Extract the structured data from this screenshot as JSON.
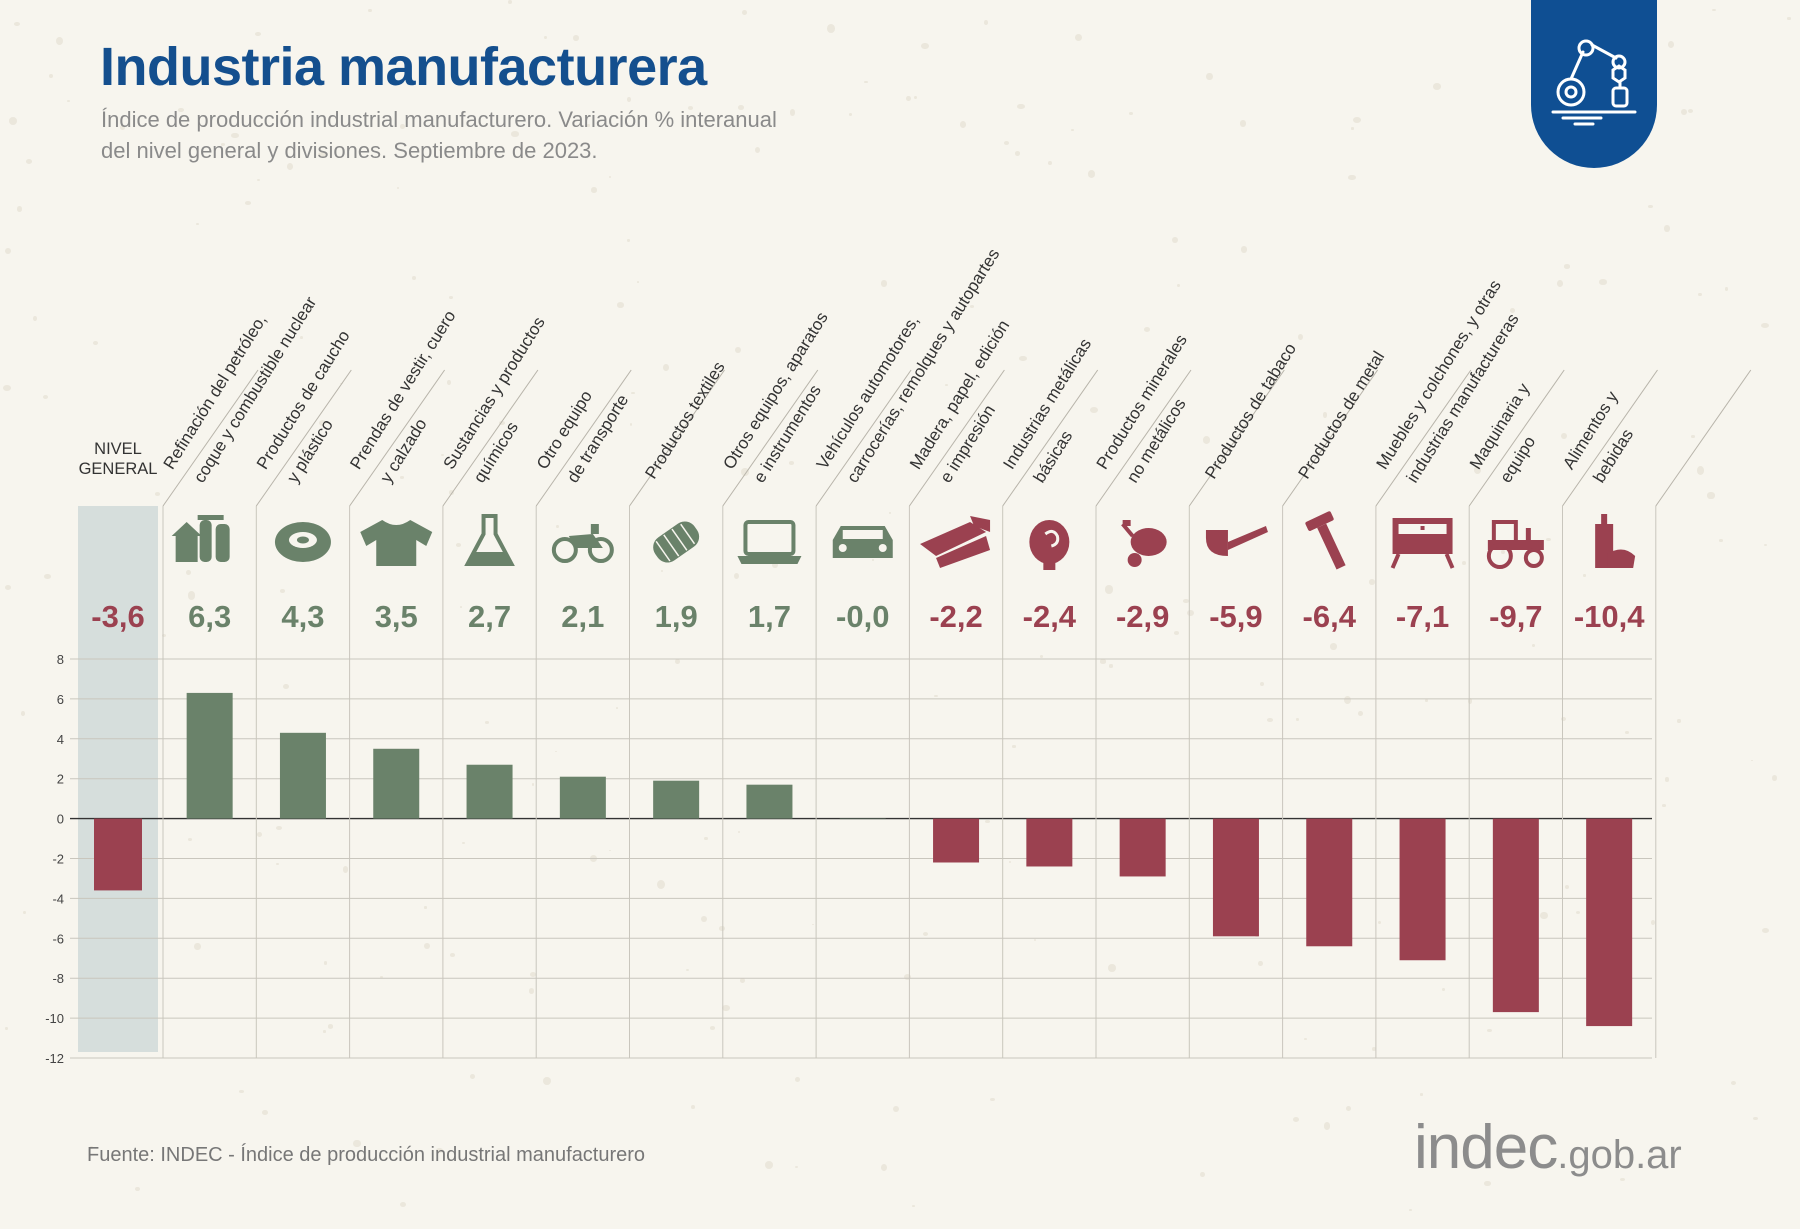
{
  "header": {
    "title": "Industria manufacturera",
    "subtitle_line1": "Índice de producción industrial manufacturero. Variación % interanual",
    "subtitle_line2": "del nivel general y divisiones. Septiembre de 2023."
  },
  "badge": {
    "icon": "robot-arm-icon"
  },
  "footer": {
    "source": "Fuente: INDEC - Índice de producción industrial manufacturero",
    "brand_main": "indec",
    "brand_suffix": ".gob.ar"
  },
  "colors": {
    "positive": "#6a826a",
    "negative": "#9b4150",
    "title": "#144f8e",
    "highlight": "#d6dedc"
  },
  "chart_data": {
    "type": "bar",
    "ylim": [
      -12,
      8
    ],
    "yticks": [
      8,
      6,
      4,
      2,
      0,
      -2,
      -4,
      -6,
      -8,
      -10,
      -12
    ],
    "grid": true,
    "highlight": {
      "label": [
        "NIVEL",
        "GENERAL"
      ],
      "value": -3.6,
      "value_label": "-3,6",
      "icon": ""
    },
    "categories": [
      {
        "label": [
          "Refinación del petróleo,",
          "coque y combustible nuclear"
        ],
        "value": 6.3,
        "value_label": "6,3",
        "icon": "refinery-icon"
      },
      {
        "label": [
          "Productos de caucho",
          "y plástico"
        ],
        "value": 4.3,
        "value_label": "4,3",
        "icon": "tire-icon"
      },
      {
        "label": [
          "Prendas de vestir, cuero",
          "y calzado"
        ],
        "value": 3.5,
        "value_label": "3,5",
        "icon": "sweater-icon"
      },
      {
        "label": [
          "Sustancias y productos",
          "químicos"
        ],
        "value": 2.7,
        "value_label": "2,7",
        "icon": "flask-icon"
      },
      {
        "label": [
          "Otro equipo",
          "de transporte"
        ],
        "value": 2.1,
        "value_label": "2,1",
        "icon": "motorcycle-icon"
      },
      {
        "label": [
          "Productos textiles"
        ],
        "value": 1.9,
        "value_label": "1,9",
        "icon": "thread-spool-icon"
      },
      {
        "label": [
          "Otros equipos, aparatos",
          "e instrumentos"
        ],
        "value": 1.7,
        "value_label": "1,7",
        "icon": "laptop-icon"
      },
      {
        "label": [
          "Vehículos automotores,",
          "carrocerías, remolques y autopartes"
        ],
        "value": -0.0,
        "value_label": "-0,0",
        "icon": "car-icon"
      },
      {
        "label": [
          "Madera, papel, edición",
          "e impresión"
        ],
        "value": -2.2,
        "value_label": "-2,2",
        "icon": "wood-plank-icon"
      },
      {
        "label": [
          "Industrias metálicas",
          "básicas"
        ],
        "value": -2.4,
        "value_label": "-2,4",
        "icon": "metal-coil-icon"
      },
      {
        "label": [
          "Productos minerales",
          "no metálicos"
        ],
        "value": -2.9,
        "value_label": "-2,9",
        "icon": "cement-mixer-icon"
      },
      {
        "label": [
          "Productos de tabaco"
        ],
        "value": -5.9,
        "value_label": "-5,9",
        "icon": "pipe-icon"
      },
      {
        "label": [
          "Productos de metal"
        ],
        "value": -6.4,
        "value_label": "-6,4",
        "icon": "bolt-icon"
      },
      {
        "label": [
          "Muebles y colchones, y otras",
          "industrias manufactureras"
        ],
        "value": -7.1,
        "value_label": "-7,1",
        "icon": "cabinet-icon"
      },
      {
        "label": [
          "Maquinaria y",
          "equipo"
        ],
        "value": -9.7,
        "value_label": "-9,7",
        "icon": "tractor-icon"
      },
      {
        "label": [
          "Alimentos y",
          "bebidas"
        ],
        "value": -10.4,
        "value_label": "-10,4",
        "icon": "bottle-bread-icon"
      }
    ]
  }
}
